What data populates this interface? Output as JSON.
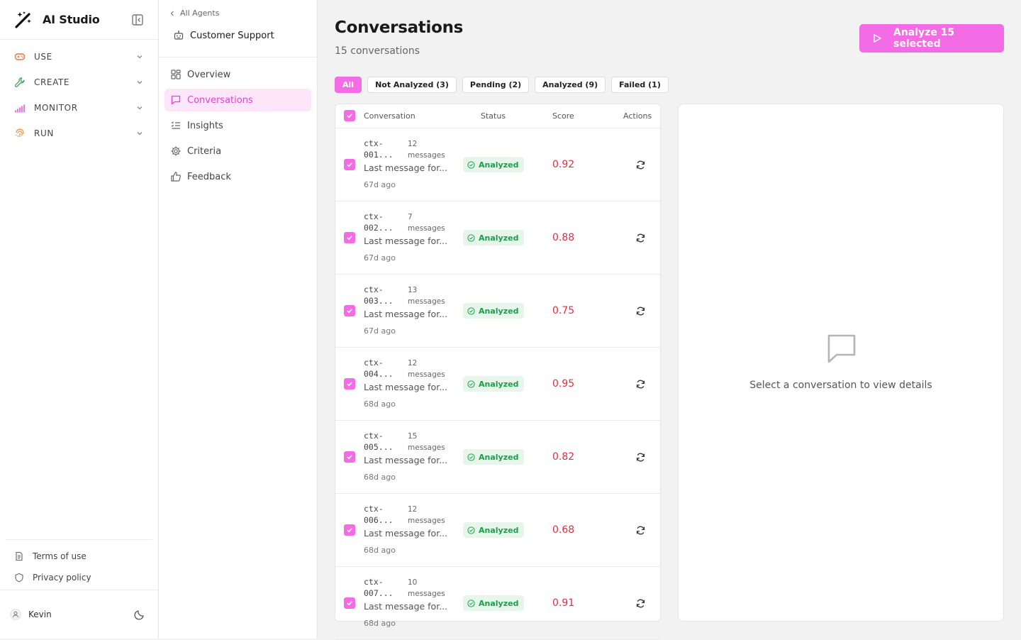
{
  "app": {
    "title": "AI Studio",
    "sections": [
      {
        "label": "USE",
        "icon": "gamepad-icon",
        "color": "#e8733c"
      },
      {
        "label": "CREATE",
        "icon": "wrench-icon",
        "color": "#3aa55d"
      },
      {
        "label": "MONITOR",
        "icon": "signal-bars-icon",
        "color": "#e83fd9"
      },
      {
        "label": "RUN",
        "icon": "fingerprint-icon",
        "color": "#e8933c"
      }
    ],
    "footer": {
      "terms": "Terms of use",
      "privacy": "Privacy policy"
    },
    "user": {
      "name": "Kevin"
    }
  },
  "agent": {
    "back_label": "All Agents",
    "name": "Customer Support",
    "nav": [
      {
        "label": "Overview",
        "icon": "grid-icon"
      },
      {
        "label": "Conversations",
        "icon": "chat-icon",
        "active": true
      },
      {
        "label": "Insights",
        "icon": "list-check-icon"
      },
      {
        "label": "Criteria",
        "icon": "gear-icon"
      },
      {
        "label": "Feedback",
        "icon": "thumbs-up-icon"
      }
    ]
  },
  "main": {
    "title": "Conversations",
    "subtitle": "15 conversations",
    "analyze_button": "Analyze 15 selected",
    "filters": [
      {
        "label": "All",
        "active": true
      },
      {
        "label": "Not Analyzed (3)"
      },
      {
        "label": "Pending (2)"
      },
      {
        "label": "Analyzed (9)"
      },
      {
        "label": "Failed (1)"
      }
    ],
    "table": {
      "headers": {
        "conversation": "Conversation",
        "status": "Status",
        "score": "Score",
        "actions": "Actions"
      },
      "rows": [
        {
          "id_line1": "ctx-",
          "id_line2": "001...",
          "count": "12",
          "count_unit": "messages",
          "last": "Last message for...",
          "ago": "67d ago",
          "status": "Analyzed",
          "score": "0.92"
        },
        {
          "id_line1": "ctx-",
          "id_line2": "002...",
          "count": "7",
          "count_unit": "messages",
          "last": "Last message for...",
          "ago": "67d ago",
          "status": "Analyzed",
          "score": "0.88"
        },
        {
          "id_line1": "ctx-",
          "id_line2": "003...",
          "count": "13",
          "count_unit": "messages",
          "last": "Last message for...",
          "ago": "67d ago",
          "status": "Analyzed",
          "score": "0.75"
        },
        {
          "id_line1": "ctx-",
          "id_line2": "004...",
          "count": "12",
          "count_unit": "messages",
          "last": "Last message for...",
          "ago": "68d ago",
          "status": "Analyzed",
          "score": "0.95"
        },
        {
          "id_line1": "ctx-",
          "id_line2": "005...",
          "count": "15",
          "count_unit": "messages",
          "last": "Last message for...",
          "ago": "68d ago",
          "status": "Analyzed",
          "score": "0.82"
        },
        {
          "id_line1": "ctx-",
          "id_line2": "006...",
          "count": "12",
          "count_unit": "messages",
          "last": "Last message for...",
          "ago": "68d ago",
          "status": "Analyzed",
          "score": "0.68"
        },
        {
          "id_line1": "ctx-",
          "id_line2": "007...",
          "count": "10",
          "count_unit": "messages",
          "last": "Last message for...",
          "ago": "68d ago",
          "status": "Analyzed",
          "score": "0.91"
        }
      ]
    },
    "detail_empty": "Select a conversation to view details"
  },
  "colors": {
    "accent": "#f36ce6",
    "score": "#e0303e",
    "status_ok": "#1e9d4a"
  }
}
